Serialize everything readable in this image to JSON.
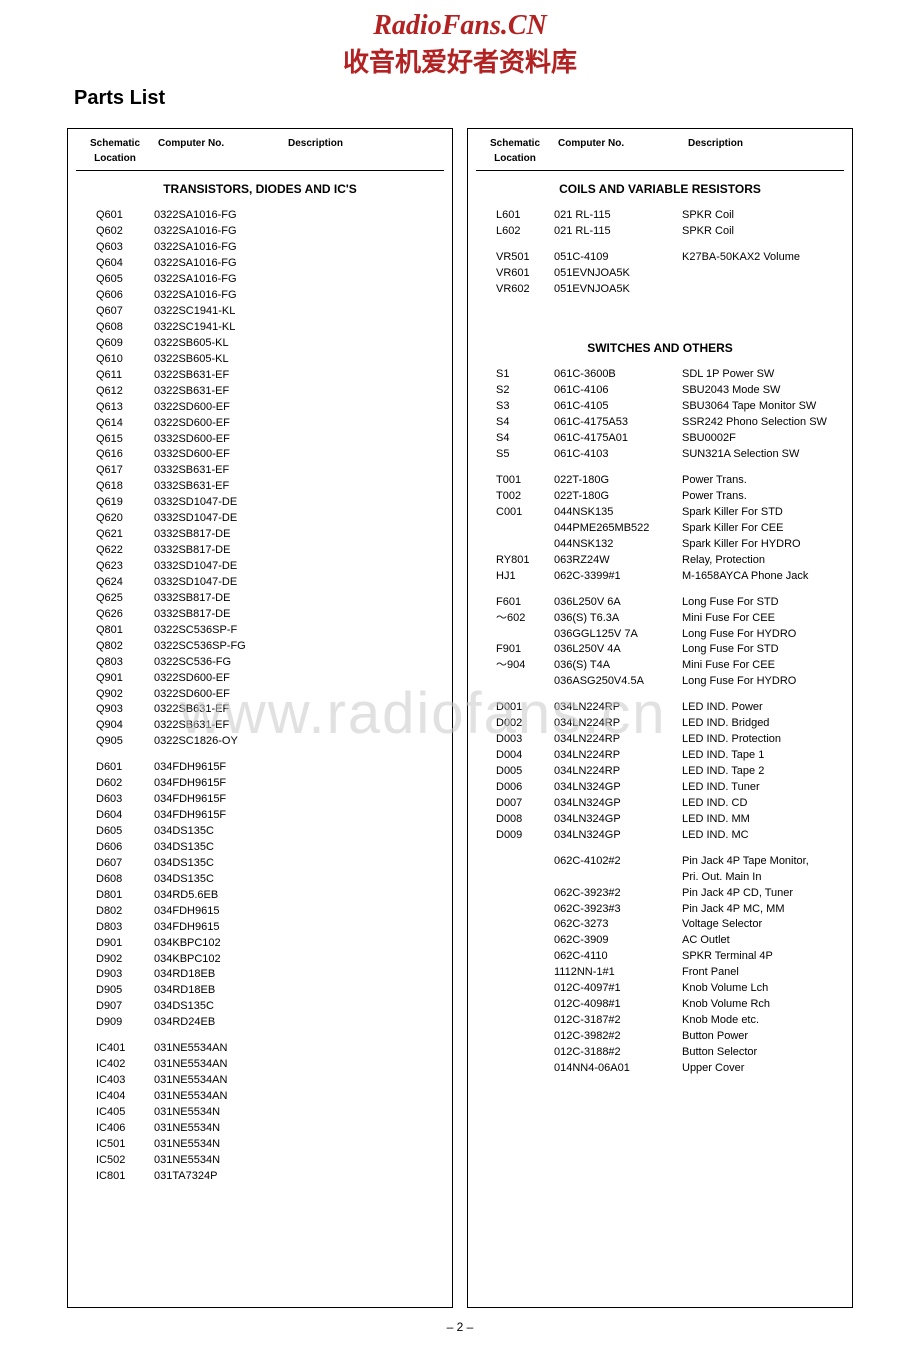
{
  "watermark": {
    "line1": "RadioFans.CN",
    "line2": "收音机爱好者资料库",
    "mid": "www.radiofans.cn"
  },
  "title": "Parts List",
  "page_num": "– 2 –",
  "headers": {
    "loc": "Schematic Location",
    "comp": "Computer No.",
    "desc": "Description"
  },
  "left": {
    "section1_title": "TRANSISTORS, DIODES AND IC'S",
    "rows1": [
      [
        "Q601",
        "0322SA1016-FG",
        ""
      ],
      [
        "Q602",
        "0322SA1016-FG",
        ""
      ],
      [
        "Q603",
        "0322SA1016-FG",
        ""
      ],
      [
        "Q604",
        "0322SA1016-FG",
        ""
      ],
      [
        "Q605",
        "0322SA1016-FG",
        ""
      ],
      [
        "Q606",
        "0322SA1016-FG",
        ""
      ],
      [
        "Q607",
        "0322SC1941-KL",
        ""
      ],
      [
        "Q608",
        "0322SC1941-KL",
        ""
      ],
      [
        "Q609",
        "0322SB605-KL",
        ""
      ],
      [
        "Q610",
        "0322SB605-KL",
        ""
      ],
      [
        "Q611",
        "0322SB631-EF",
        ""
      ],
      [
        "Q612",
        "0322SB631-EF",
        ""
      ],
      [
        "Q613",
        "0322SD600-EF",
        ""
      ],
      [
        "Q614",
        "0322SD600-EF",
        ""
      ],
      [
        "Q615",
        "0332SD600-EF",
        ""
      ],
      [
        "Q616",
        "0332SD600-EF",
        ""
      ],
      [
        "Q617",
        "0332SB631-EF",
        ""
      ],
      [
        "Q618",
        "0332SB631-EF",
        ""
      ],
      [
        "Q619",
        "0332SD1047-DE",
        ""
      ],
      [
        "Q620",
        "0332SD1047-DE",
        ""
      ],
      [
        "Q621",
        "0332SB817-DE",
        ""
      ],
      [
        "Q622",
        "0332SB817-DE",
        ""
      ],
      [
        "Q623",
        "0332SD1047-DE",
        ""
      ],
      [
        "Q624",
        "0332SD1047-DE",
        ""
      ],
      [
        "Q625",
        "0332SB817-DE",
        ""
      ],
      [
        "Q626",
        "0332SB817-DE",
        ""
      ],
      [
        "Q801",
        "0322SC536SP-F",
        ""
      ],
      [
        "Q802",
        "0322SC536SP-FG",
        ""
      ],
      [
        "Q803",
        "0322SC536-FG",
        ""
      ],
      [
        "Q901",
        "0322SD600-EF",
        ""
      ],
      [
        "Q902",
        "0322SD600-EF",
        ""
      ],
      [
        "Q903",
        "0322SB631-EF",
        ""
      ],
      [
        "Q904",
        "0322SB631-EF",
        ""
      ],
      [
        "Q905",
        "0322SC1826-OY",
        ""
      ]
    ],
    "rows2": [
      [
        "D601",
        "034FDH9615F",
        ""
      ],
      [
        "D602",
        "034FDH9615F",
        ""
      ],
      [
        "D603",
        "034FDH9615F",
        ""
      ],
      [
        "D604",
        "034FDH9615F",
        ""
      ],
      [
        "D605",
        "034DS135C",
        ""
      ],
      [
        "D606",
        "034DS135C",
        ""
      ],
      [
        "D607",
        "034DS135C",
        ""
      ],
      [
        "D608",
        "034DS135C",
        ""
      ],
      [
        "D801",
        "034RD5.6EB",
        ""
      ],
      [
        "D802",
        "034FDH9615",
        ""
      ],
      [
        "D803",
        "034FDH9615",
        ""
      ],
      [
        "D901",
        "034KBPC102",
        ""
      ],
      [
        "D902",
        "034KBPC102",
        ""
      ],
      [
        "D903",
        "034RD18EB",
        ""
      ],
      [
        "D905",
        "034RD18EB",
        ""
      ],
      [
        "D907",
        "034DS135C",
        ""
      ],
      [
        "D909",
        "034RD24EB",
        ""
      ]
    ],
    "rows3": [
      [
        "IC401",
        "031NE5534AN",
        ""
      ],
      [
        "IC402",
        "031NE5534AN",
        ""
      ],
      [
        "IC403",
        "031NE5534AN",
        ""
      ],
      [
        "IC404",
        "031NE5534AN",
        ""
      ],
      [
        "IC405",
        "031NE5534N",
        ""
      ],
      [
        "IC406",
        "031NE5534N",
        ""
      ],
      [
        "IC501",
        "031NE5534N",
        ""
      ],
      [
        "IC502",
        "031NE5534N",
        ""
      ],
      [
        "IC801",
        "031TA7324P",
        ""
      ]
    ]
  },
  "right": {
    "section1_title": "COILS AND VARIABLE RESISTORS",
    "rows1": [
      [
        "L601",
        "021 RL-115",
        "SPKR Coil"
      ],
      [
        "L602",
        "021 RL-115",
        "SPKR Coil"
      ]
    ],
    "rows1b": [
      [
        "VR501",
        "051C-4109",
        "K27BA-50KAX2 Volume"
      ],
      [
        "VR601",
        "051EVNJOA5K",
        ""
      ],
      [
        "VR602",
        "051EVNJOA5K",
        ""
      ]
    ],
    "section2_title": "SWITCHES AND OTHERS",
    "rows2": [
      [
        "S1",
        "061C-3600B",
        "SDL 1P Power SW"
      ],
      [
        "S2",
        "061C-4106",
        "SBU2043 Mode SW"
      ],
      [
        "S3",
        "061C-4105",
        "SBU3064 Tape Monitor SW"
      ],
      [
        "S4",
        "061C-4175A53",
        "SSR242 Phono Selection SW"
      ],
      [
        "S4",
        "061C-4175A01",
        "SBU0002F"
      ],
      [
        "S5",
        "061C-4103",
        "SUN321A Selection SW"
      ]
    ],
    "rows3": [
      [
        "T001",
        "022T-180G",
        "Power Trans."
      ],
      [
        "T002",
        "022T-180G",
        "Power Trans."
      ],
      [
        "C001",
        "044NSK135",
        "Spark Killer For STD"
      ],
      [
        "",
        "044PME265MB522",
        "Spark Killer For CEE"
      ],
      [
        "",
        "044NSK132",
        "Spark Killer For HYDRO"
      ],
      [
        "RY801",
        "063RZ24W",
        "Relay, Protection"
      ],
      [
        "HJ1",
        "062C-3399#1",
        "M-1658AYCA Phone Jack"
      ]
    ],
    "rows4": [
      [
        "F601",
        "036L250V 6A",
        "Long Fuse For STD"
      ],
      [
        "～602",
        "036(S) T6.3A",
        "Mini Fuse For CEE"
      ],
      [
        "",
        "036GGL125V 7A",
        "Long Fuse For HYDRO"
      ],
      [
        "F901",
        "036L250V 4A",
        "Long Fuse For STD"
      ],
      [
        "～904",
        "036(S) T4A",
        "Mini Fuse For CEE"
      ],
      [
        "",
        "036ASG250V4.5A",
        "Long Fuse For HYDRO"
      ]
    ],
    "rows5": [
      [
        "D001",
        "034LN224RP",
        "LED IND. Power"
      ],
      [
        "D002",
        "034LN224RP",
        "LED IND. Bridged"
      ],
      [
        "D003",
        "034LN224RP",
        "LED IND. Protection"
      ],
      [
        "D004",
        "034LN224RP",
        "LED IND. Tape 1"
      ],
      [
        "D005",
        "034LN224RP",
        "LED IND. Tape 2"
      ],
      [
        "D006",
        "034LN324GP",
        "LED IND. Tuner"
      ],
      [
        "D007",
        "034LN324GP",
        "LED IND. CD"
      ],
      [
        "D008",
        "034LN324GP",
        "LED IND. MM"
      ],
      [
        "D009",
        "034LN324GP",
        "LED IND. MC"
      ]
    ],
    "rows6": [
      [
        "",
        "062C-4102#2",
        "Pin Jack 4P Tape Monitor,"
      ],
      [
        "",
        "",
        "                      Pri. Out. Main In"
      ],
      [
        "",
        "062C-3923#2",
        "Pin Jack 4P CD, Tuner"
      ],
      [
        "",
        "062C-3923#3",
        "Pin Jack 4P MC, MM"
      ],
      [
        "",
        "062C-3273",
        "Voltage Selector"
      ],
      [
        "",
        "062C-3909",
        "AC Outlet"
      ],
      [
        "",
        "062C-4110",
        "SPKR Terminal 4P"
      ],
      [
        "",
        "1112NN-1#1",
        "Front Panel"
      ],
      [
        "",
        "012C-4097#1",
        "Knob Volume Lch"
      ],
      [
        "",
        "012C-4098#1",
        "Knob Volume Rch"
      ],
      [
        "",
        "012C-3187#2",
        "Knob Mode etc."
      ],
      [
        "",
        "012C-3982#2",
        "Button Power"
      ],
      [
        "",
        "012C-3188#2",
        "Button Selector"
      ],
      [
        "",
        "014NN4-06A01",
        "Upper Cover"
      ]
    ]
  }
}
